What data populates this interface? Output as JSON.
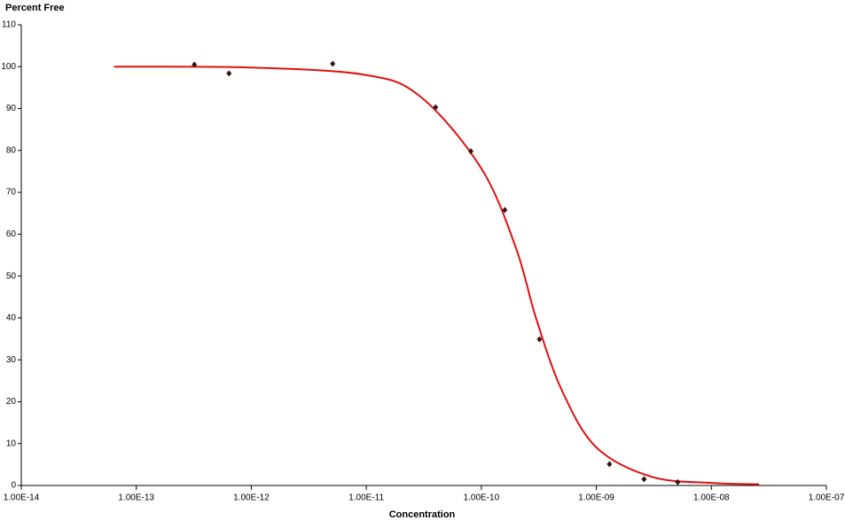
{
  "chart_data": {
    "type": "scatter",
    "ylabel": "Percent Free",
    "xlabel": "Concentration",
    "xscale": "log",
    "xlim": [
      1e-14,
      1e-07
    ],
    "xticks": [
      {
        "value": 1e-14,
        "label": "1.00E-14"
      },
      {
        "value": 1e-13,
        "label": "1.00E-13"
      },
      {
        "value": 1e-12,
        "label": "1.00E-12"
      },
      {
        "value": 1e-11,
        "label": "1.00E-11"
      },
      {
        "value": 1e-10,
        "label": "1.00E-10"
      },
      {
        "value": 1e-09,
        "label": "1.00E-09"
      },
      {
        "value": 1e-08,
        "label": "1.00E-08"
      },
      {
        "value": 1e-07,
        "label": "1.00E-07"
      }
    ],
    "ylim": [
      0,
      110
    ],
    "yticks": [
      0,
      10,
      20,
      30,
      40,
      50,
      60,
      70,
      80,
      90,
      100,
      110
    ],
    "points": {
      "color": "#3a1010",
      "x": [
        3.2e-13,
        6.4e-13,
        5.1e-12,
        4e-11,
        8.1e-11,
        1.6e-10,
        3.2e-10,
        1.3e-09,
        2.6e-09,
        5.1e-09
      ],
      "y": [
        100.5,
        98.4,
        100.7,
        90.3,
        79.8,
        65.8,
        34.9,
        5.1,
        1.5,
        0.8
      ]
    },
    "curve": {
      "color": "#e01010",
      "x": [
        6.4e-14,
        1e-12,
        1e-11,
        3e-11,
        1e-10,
        2e-10,
        3e-10,
        5e-10,
        1e-09,
        3e-09,
        1e-08,
        2.6e-08
      ],
      "y": [
        100,
        99.8,
        98,
        92.7,
        75.7,
        56.7,
        39.8,
        22.8,
        9.1,
        2.1,
        0.6,
        0.3
      ]
    }
  }
}
